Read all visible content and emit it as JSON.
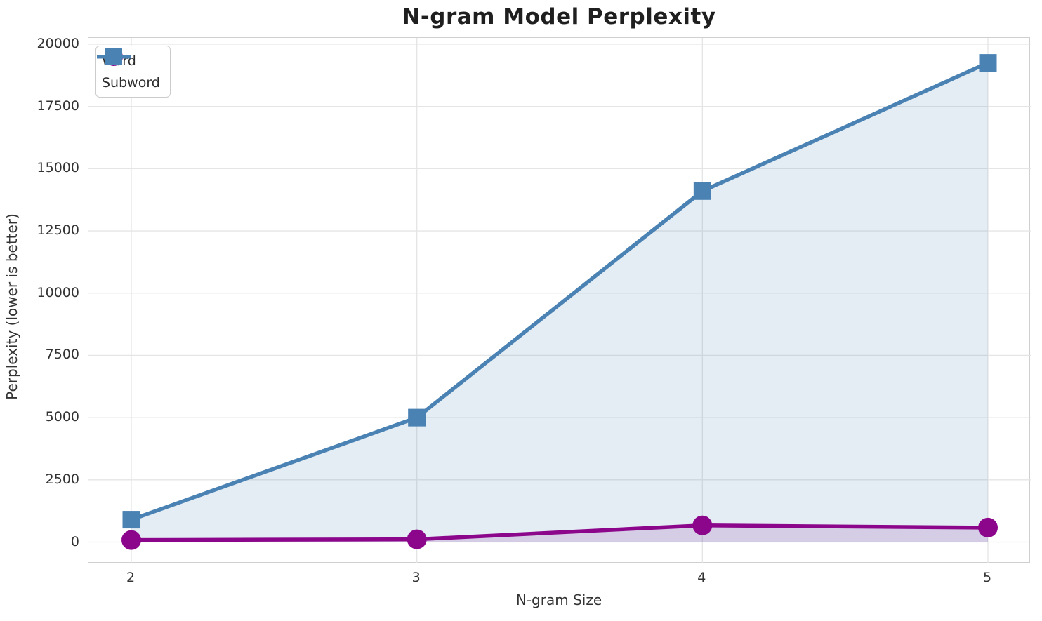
{
  "chart_data": {
    "type": "line",
    "title": "N-gram Model Perplexity",
    "xlabel": "N-gram Size",
    "ylabel": "Perplexity (lower is better)",
    "x": [
      2,
      3,
      4,
      5
    ],
    "xticklabels": [
      "2",
      "3",
      "4",
      "5"
    ],
    "yticks": [
      0,
      2500,
      5000,
      7500,
      10000,
      12500,
      15000,
      17500,
      20000
    ],
    "yticklabels": [
      "0",
      "2500",
      "5000",
      "7500",
      "10000",
      "12500",
      "15000",
      "17500",
      "20000"
    ],
    "ylim": [
      0,
      20000
    ],
    "grid": true,
    "legend_position": "upper left",
    "series": [
      {
        "name": "Word",
        "values": [
          80,
          110,
          670,
          580
        ],
        "color": "#8b068b",
        "marker": "circle",
        "fill_below": true,
        "fill_opacity": 0.15
      },
      {
        "name": "Subword",
        "values": [
          900,
          5000,
          14100,
          19250
        ],
        "color": "#4a82b4",
        "marker": "square",
        "fill_below": true,
        "fill_opacity": 0.15
      }
    ]
  },
  "style_colors": {
    "grid": "#e5e5e5",
    "spine": "#cfcfcf",
    "tick_text": "#333333",
    "title_text": "#1f1f1f"
  }
}
